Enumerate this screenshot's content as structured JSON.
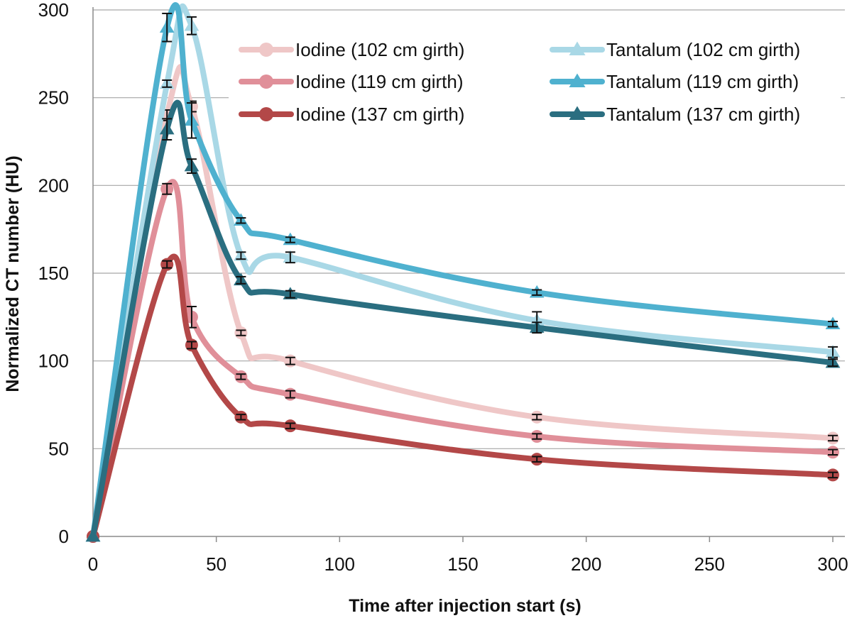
{
  "chart_data": {
    "type": "line",
    "title": "",
    "xlabel": "Time after injection start (s)",
    "ylabel": "Normalized CT number (HU)",
    "xlim": [
      0,
      300
    ],
    "ylim": [
      0,
      300
    ],
    "xticks": [
      "0",
      "50",
      "100",
      "150",
      "200",
      "250",
      "300"
    ],
    "yticks": [
      "0",
      "50",
      "100",
      "150",
      "200",
      "250",
      "300"
    ],
    "grid": "horizontal",
    "legend_position": "top-right",
    "x": [
      0,
      30,
      40,
      60,
      80,
      180,
      300
    ],
    "series": [
      {
        "name": "Iodine (102 cm girth)",
        "color": "#efc7c7",
        "marker": "circle",
        "values": [
          0,
          240,
          245,
          116,
          100,
          68,
          56
        ],
        "errors": [
          0,
          3,
          3,
          1.5,
          2,
          1.5,
          1.5
        ]
      },
      {
        "name": "Iodine (119 cm girth)",
        "color": "#e08f99",
        "marker": "circle",
        "values": [
          0,
          198,
          125,
          91,
          81,
          57,
          48
        ],
        "errors": [
          0,
          3,
          6,
          1.5,
          2,
          1.5,
          1.5
        ]
      },
      {
        "name": "Iodine (137 cm girth)",
        "color": "#b34848",
        "marker": "circle",
        "values": [
          0,
          155,
          109,
          68,
          63,
          44,
          35
        ],
        "errors": [
          0,
          2,
          2,
          1.5,
          1.5,
          1.5,
          1.5
        ]
      },
      {
        "name": "Tantalum (102 cm girth)",
        "color": "#a9d8e6",
        "marker": "triangle",
        "values": [
          0,
          258,
          291,
          160,
          159,
          123,
          105
        ],
        "errors": [
          0,
          2,
          5,
          2,
          3,
          5,
          3
        ]
      },
      {
        "name": "Tantalum (119 cm girth)",
        "color": "#4fb1cf",
        "marker": "triangle",
        "values": [
          0,
          290,
          237,
          180,
          169,
          139,
          121
        ],
        "errors": [
          0,
          8,
          10,
          1.5,
          1.5,
          1.5,
          1.5
        ]
      },
      {
        "name": "Tantalum (137 cm girth)",
        "color": "#2a6e80",
        "marker": "triangle",
        "values": [
          0,
          232,
          211,
          146,
          138,
          119,
          99
        ],
        "errors": [
          0,
          6,
          4,
          2,
          2,
          3,
          2
        ]
      }
    ]
  }
}
